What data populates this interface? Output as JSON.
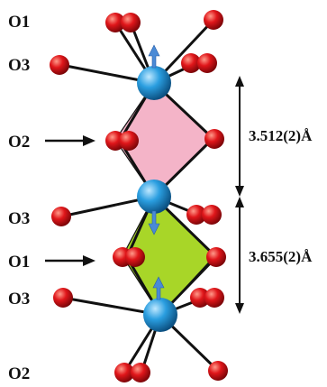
{
  "labels": {
    "o1_top": "O1",
    "o3_upper": "O3",
    "o2_upper": "O2",
    "o3_middle": "O3",
    "o1_middle": "O1",
    "o3_lower": "O3",
    "o2_bottom": "O2"
  },
  "distances": {
    "upper": "3.512(2)Å",
    "lower": "3.655(2)Å"
  },
  "colors": {
    "metal_atom": "#1f8fcf",
    "oxygen_atom": "#d8161b",
    "upper_face": "#f4b4c8",
    "lower_face": "#a8d628",
    "moment_arrow": "#4a8ad6",
    "bond": "#111111"
  },
  "icons": {
    "moment_arrow": "up-down-arrow-icon",
    "pointer": "right-arrow-icon"
  }
}
